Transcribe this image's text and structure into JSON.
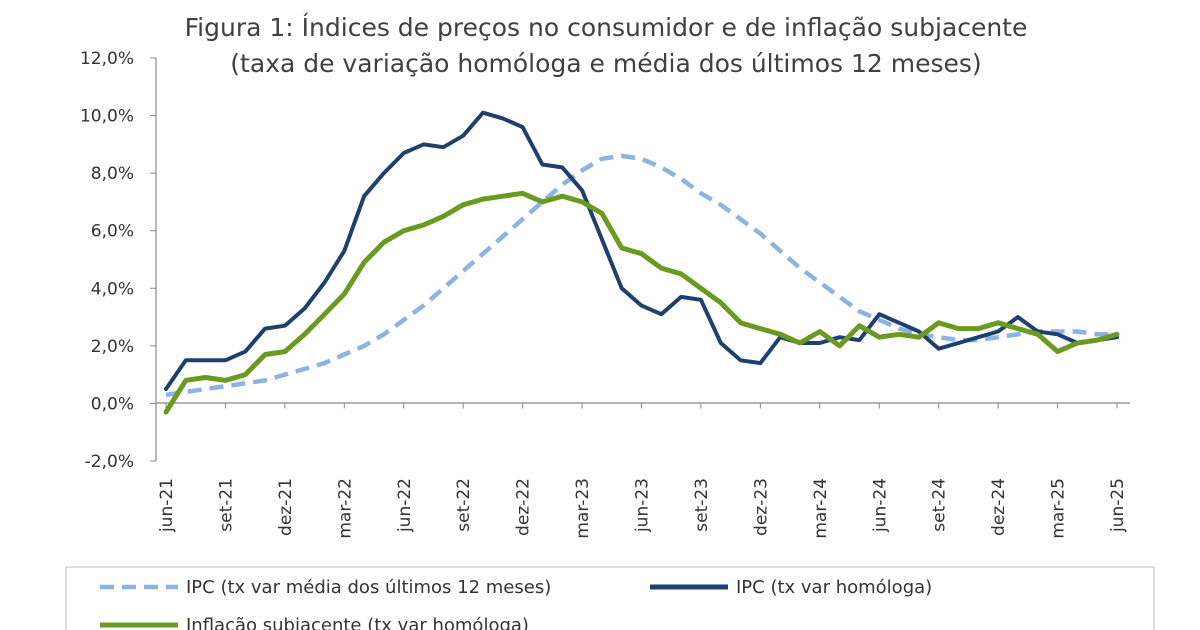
{
  "chart_data": {
    "type": "line",
    "title": "Figura 1: Índices de preços no consumidor e de inflação subjacente",
    "subtitle": "(taxa de variação homóloga e média dos últimos 12 meses)",
    "xlabel": "",
    "ylabel": "",
    "ylim": [
      -2.0,
      12.0
    ],
    "yticks": [
      "-2,0%",
      "0,0%",
      "2,0%",
      "4,0%",
      "6,0%",
      "8,0%",
      "10,0%",
      "12,0%"
    ],
    "ytick_values": [
      -2,
      0,
      2,
      4,
      6,
      8,
      10,
      12
    ],
    "x": [
      "jun-21",
      "jul-21",
      "ago-21",
      "set-21",
      "out-21",
      "nov-21",
      "dez-21",
      "jan-22",
      "fev-22",
      "mar-22",
      "abr-22",
      "mai-22",
      "jun-22",
      "jul-22",
      "ago-22",
      "set-22",
      "out-22",
      "nov-22",
      "dez-22",
      "jan-23",
      "fev-23",
      "mar-23",
      "abr-23",
      "mai-23",
      "jun-23",
      "jul-23",
      "ago-23",
      "set-23",
      "out-23",
      "nov-23",
      "dez-23",
      "jan-24",
      "fev-24",
      "mar-24",
      "abr-24",
      "mai-24",
      "jun-24",
      "jul-24",
      "ago-24",
      "set-24",
      "out-24",
      "nov-24",
      "dez-24",
      "jan-25",
      "fev-25",
      "mar-25",
      "abr-25",
      "mai-25",
      "jun-25"
    ],
    "xtick_labels": [
      "jun-21",
      "set-21",
      "dez-21",
      "mar-22",
      "jun-22",
      "set-22",
      "dez-22",
      "mar-23",
      "jun-23",
      "set-23",
      "dez-23",
      "mar-24",
      "jun-24",
      "set-24",
      "dez-24",
      "mar-25",
      "jun-25"
    ],
    "grid": false,
    "legend_position": "bottom",
    "series": [
      {
        "name": "IPC (tx var média dos últimos 12 meses)",
        "color": "#8db3e2",
        "style": "dashed",
        "values": [
          0.3,
          0.4,
          0.5,
          0.6,
          0.7,
          0.8,
          1.0,
          1.2,
          1.4,
          1.7,
          2.0,
          2.4,
          2.9,
          3.4,
          4.0,
          4.6,
          5.2,
          5.8,
          6.4,
          7.0,
          7.6,
          8.1,
          8.5,
          8.6,
          8.5,
          8.2,
          7.8,
          7.3,
          6.9,
          6.4,
          5.9,
          5.3,
          4.7,
          4.2,
          3.7,
          3.2,
          2.9,
          2.6,
          2.4,
          2.3,
          2.2,
          2.2,
          2.3,
          2.4,
          2.5,
          2.5,
          2.5,
          2.4,
          2.4
        ]
      },
      {
        "name": "IPC (tx var homóloga)",
        "color": "#1f3f6e",
        "style": "solid",
        "values": [
          0.5,
          1.5,
          1.5,
          1.5,
          1.8,
          2.6,
          2.7,
          3.3,
          4.2,
          5.3,
          7.2,
          8.0,
          8.7,
          9.0,
          8.9,
          9.3,
          10.1,
          9.9,
          9.6,
          8.3,
          8.2,
          7.4,
          5.7,
          4.0,
          3.4,
          3.1,
          3.7,
          3.6,
          2.1,
          1.5,
          1.4,
          2.3,
          2.1,
          2.1,
          2.3,
          2.2,
          3.1,
          2.8,
          2.5,
          1.9,
          2.1,
          2.3,
          2.5,
          3.0,
          2.5,
          2.4,
          2.1,
          2.2,
          2.3
        ]
      },
      {
        "name": "Inflação subjacente (tx var homóloga)",
        "color": "#6a9a1f",
        "style": "solid",
        "values": [
          -0.3,
          0.8,
          0.9,
          0.8,
          1.0,
          1.7,
          1.8,
          2.4,
          3.1,
          3.8,
          4.9,
          5.6,
          6.0,
          6.2,
          6.5,
          6.9,
          7.1,
          7.2,
          7.3,
          7.0,
          7.2,
          7.0,
          6.6,
          5.4,
          5.2,
          4.7,
          4.5,
          4.0,
          3.5,
          2.8,
          2.6,
          2.4,
          2.1,
          2.5,
          2.0,
          2.7,
          2.3,
          2.4,
          2.3,
          2.8,
          2.6,
          2.6,
          2.8,
          2.6,
          2.4,
          1.8,
          2.1,
          2.2,
          2.4
        ]
      }
    ]
  }
}
